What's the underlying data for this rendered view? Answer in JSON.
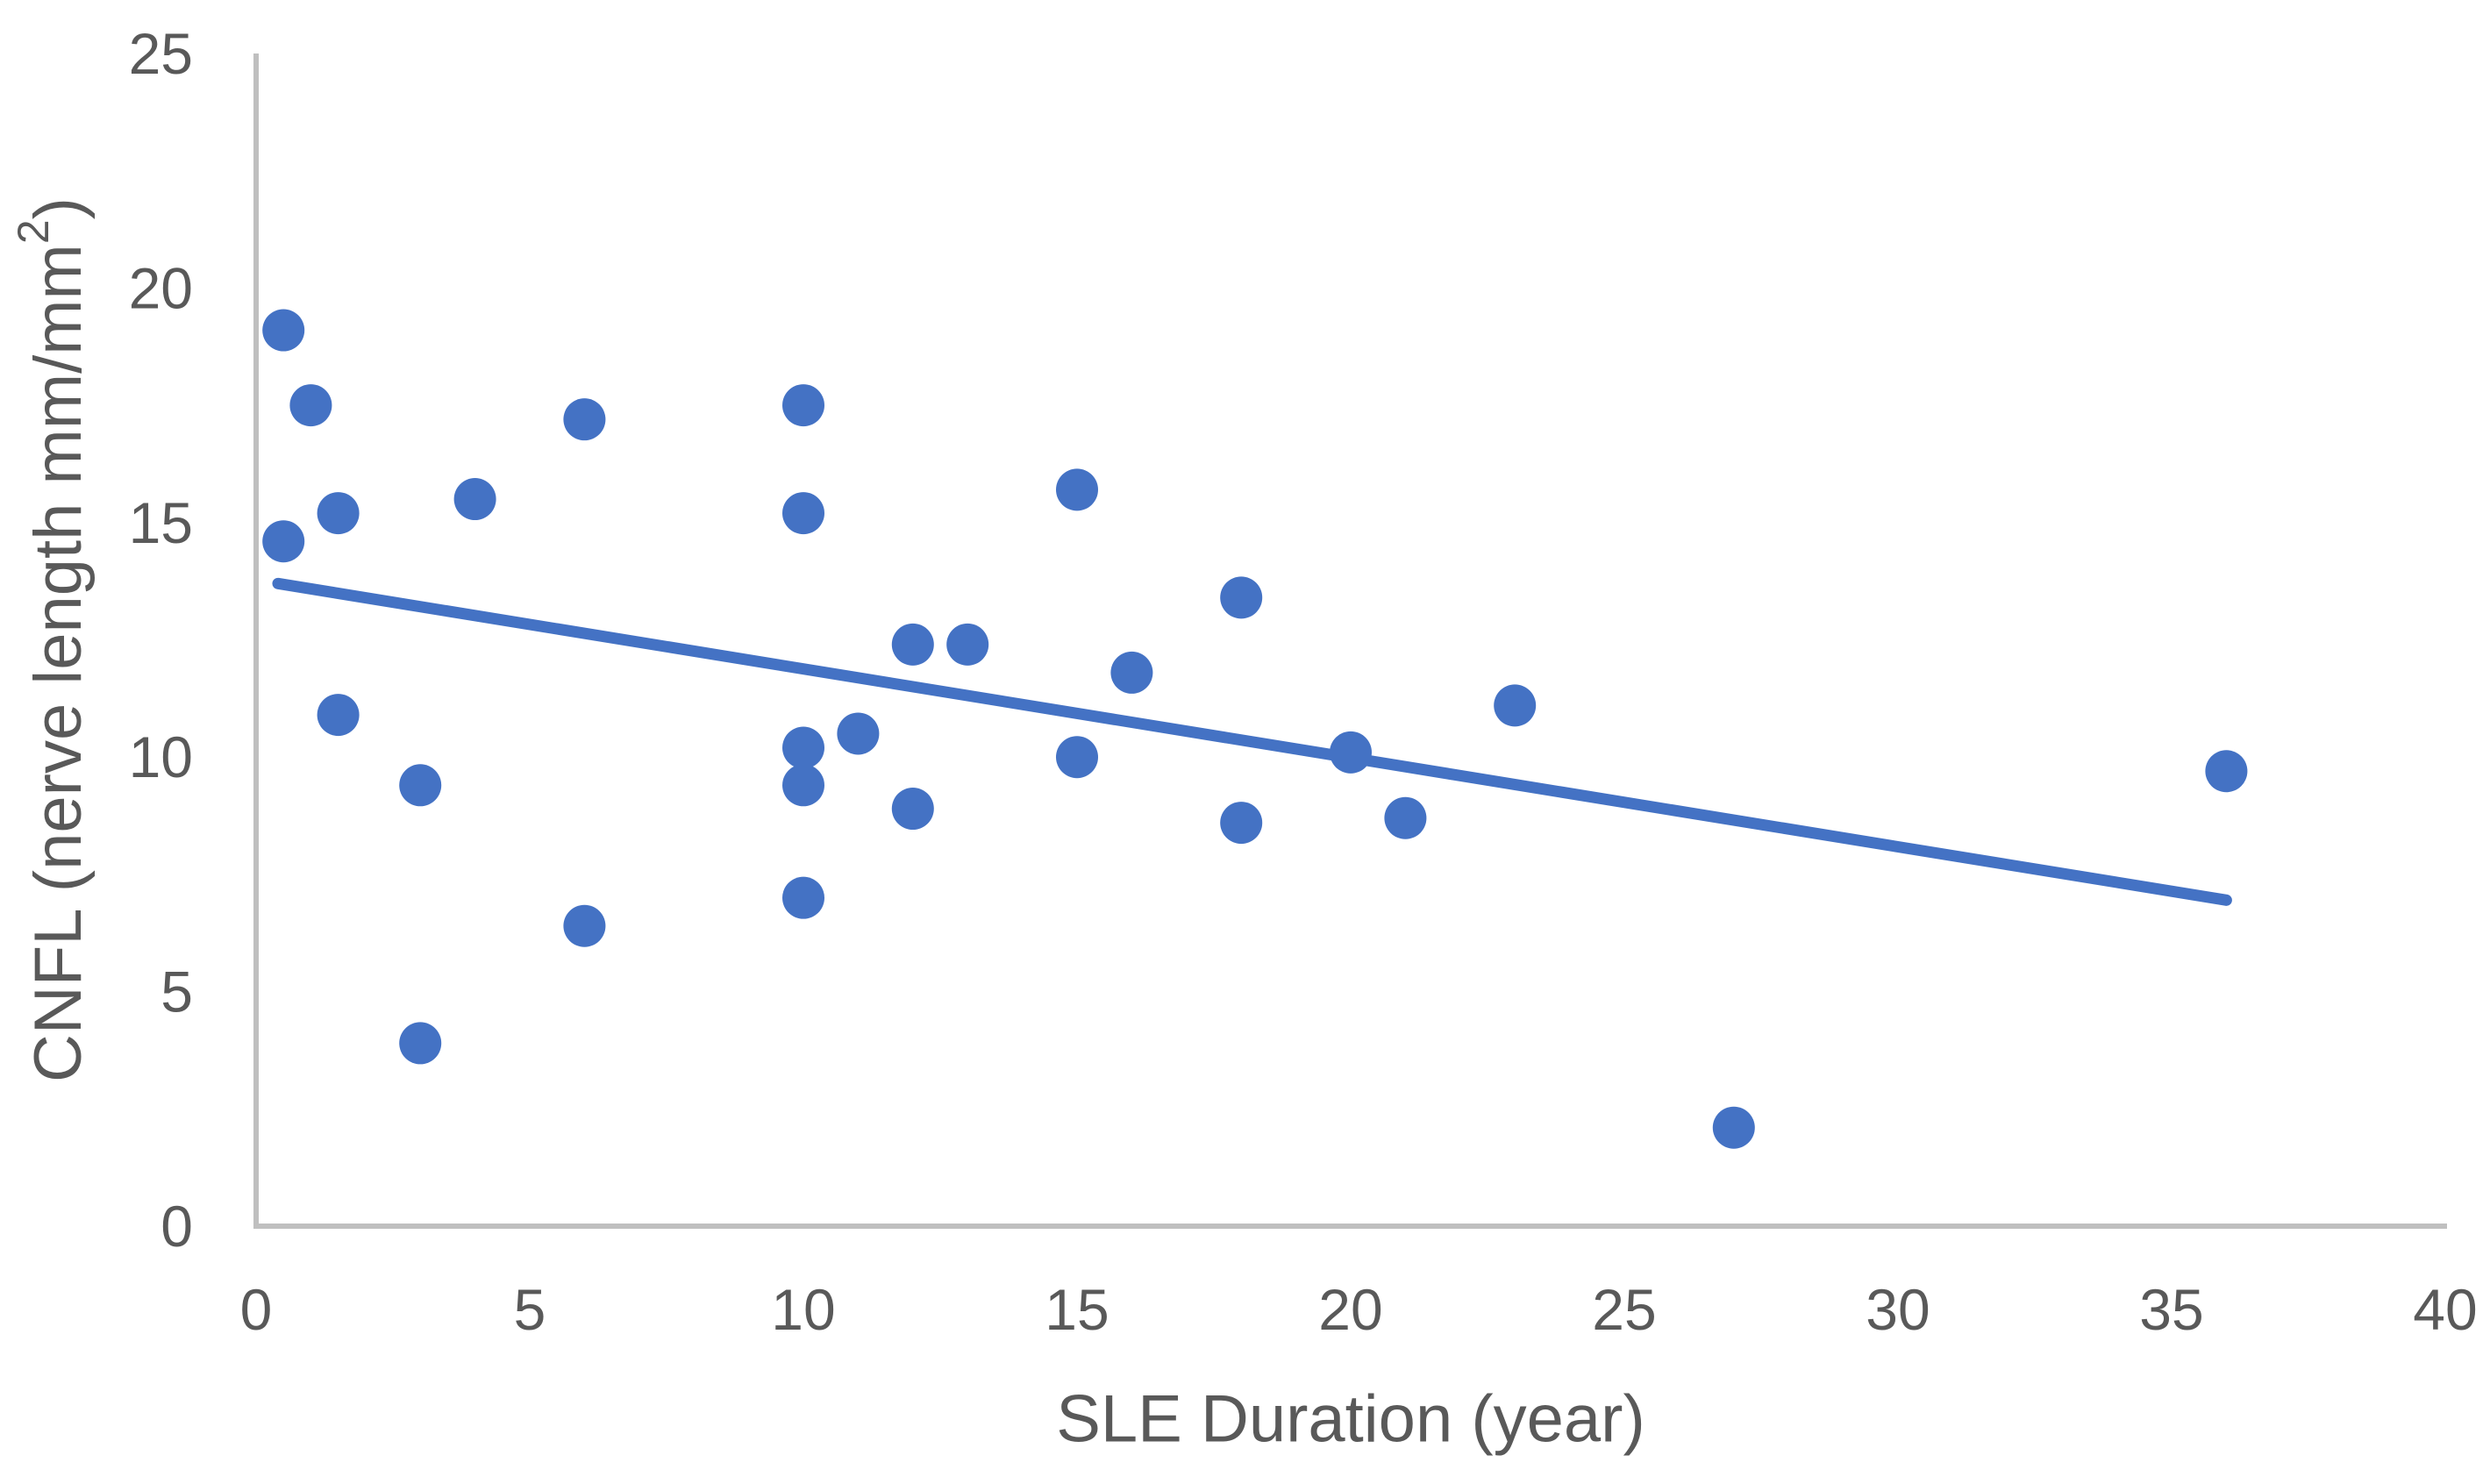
{
  "chart_data": {
    "type": "scatter",
    "title": "",
    "xlabel": "SLE Duration (year)",
    "ylabel": "CNFL (nerve length mm/mm²)",
    "ylabel_parts": {
      "prefix": "CNFL (nerve length mm/mm",
      "superscript": "2",
      "suffix": ")"
    },
    "xlim": [
      0,
      40
    ],
    "ylim": [
      0,
      25
    ],
    "x_ticks": [
      0,
      5,
      10,
      15,
      20,
      25,
      30,
      35,
      40
    ],
    "y_ticks": [
      0,
      5,
      10,
      15,
      20,
      25
    ],
    "grid": false,
    "legend_position": "none",
    "series": [
      {
        "name": "cnfl-vs-sle-duration-points",
        "type": "scatter",
        "marker": "circle",
        "marker_color": "#4472C4",
        "points": [
          [
            0.5,
            19.1
          ],
          [
            1,
            17.5
          ],
          [
            0.5,
            14.6
          ],
          [
            1.5,
            15.2
          ],
          [
            4,
            15.5
          ],
          [
            6,
            17.2
          ],
          [
            10,
            17.5
          ],
          [
            10,
            15.2
          ],
          [
            15,
            15.7
          ],
          [
            18,
            13.4
          ],
          [
            1.5,
            10.9
          ],
          [
            3,
            9.4
          ],
          [
            12,
            12.4
          ],
          [
            13,
            12.4
          ],
          [
            16,
            11.8
          ],
          [
            11,
            10.5
          ],
          [
            10,
            10.2
          ],
          [
            10,
            9.4
          ],
          [
            12,
            8.9
          ],
          [
            15,
            10.0
          ],
          [
            20,
            10.1
          ],
          [
            23,
            11.1
          ],
          [
            18,
            8.6
          ],
          [
            21,
            8.7
          ],
          [
            36,
            9.7
          ],
          [
            10,
            7.0
          ],
          [
            6,
            6.4
          ],
          [
            3,
            3.9
          ],
          [
            27,
            2.1
          ]
        ]
      },
      {
        "name": "linear-trendline",
        "type": "line",
        "color": "#4472C4",
        "points": [
          [
            0.4,
            13.7
          ],
          [
            36.0,
            6.95
          ]
        ]
      }
    ],
    "colors": {
      "accent_blue": "#4472C4",
      "axis_line": "#BFBFBF",
      "text": "#595959",
      "background": "#FFFFFF"
    }
  }
}
